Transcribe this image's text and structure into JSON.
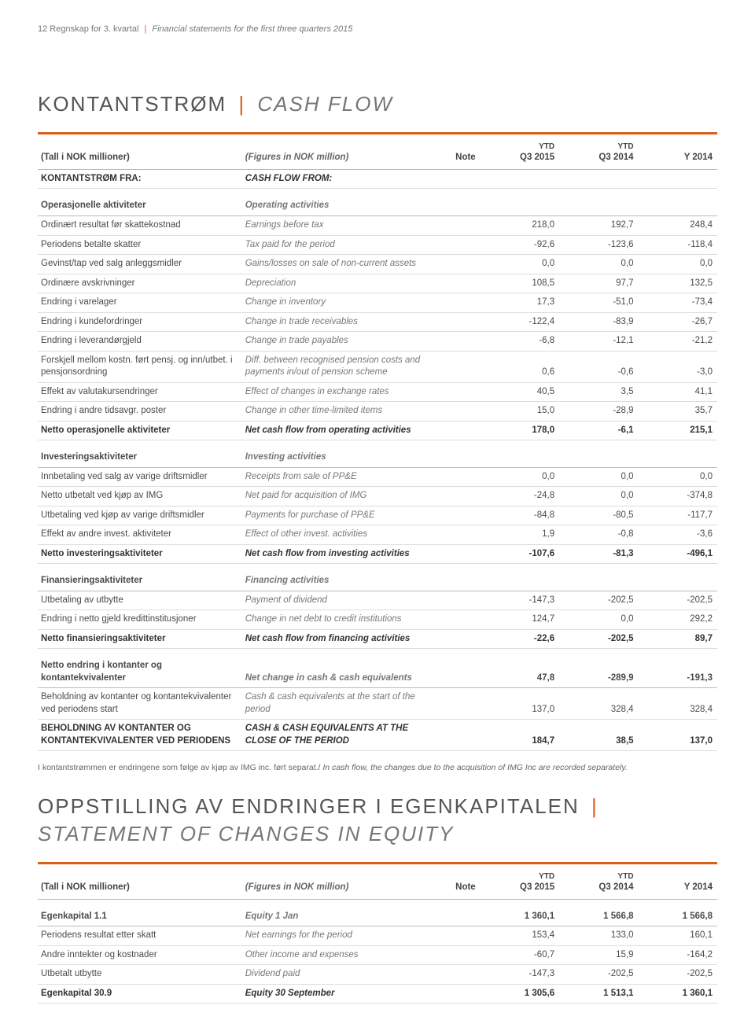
{
  "page": {
    "header_prefix": "12   Regnskap for 3. kvartal",
    "header_suffix": "Financial statements for the first three quarters 2015"
  },
  "colors": {
    "accent": "#d95f1e",
    "text": "#4a4a4a",
    "muted": "#777777",
    "rule": "#dddddd"
  },
  "title1": {
    "no": "KONTANTSTRØM",
    "en": "CASH FLOW"
  },
  "title2_line1": "OPPSTILLING AV ENDRINGER I EGENKAPITALEN",
  "title2_line2": "STATEMENT OF CHANGES IN EQUITY",
  "columns": {
    "c1_no": "(Tall i NOK millioner)",
    "c1_en": "(Figures in NOK million)",
    "note": "Note",
    "c3_top": "YTD",
    "c3": "Q3 2015",
    "c4_top": "YTD",
    "c4": "Q3 2014",
    "c5": "Y 2014"
  },
  "rows": {
    "hdr_from": {
      "no": "KONTANTSTRØM FRA:",
      "en": "CASH FLOW FROM:"
    },
    "op_head": {
      "no": "Operasjonelle aktiviteter",
      "en": "Operating activities"
    },
    "r1": {
      "no": "Ordinært resultat før skattekostnad",
      "en": "Earnings before tax",
      "v": [
        "218,0",
        "192,7",
        "248,4"
      ]
    },
    "r2": {
      "no": "Periodens betalte skatter",
      "en": "Tax paid for the period",
      "v": [
        "-92,6",
        "-123,6",
        "-118,4"
      ]
    },
    "r3": {
      "no": "Gevinst/tap ved salg anleggsmidler",
      "en": "Gains/losses on sale of non-current assets",
      "v": [
        "0,0",
        "0,0",
        "0,0"
      ]
    },
    "r4": {
      "no": "Ordinære avskrivninger",
      "en": "Depreciation",
      "v": [
        "108,5",
        "97,7",
        "132,5"
      ]
    },
    "r5": {
      "no": "Endring i varelager",
      "en": "Change in inventory",
      "v": [
        "17,3",
        "-51,0",
        "-73,4"
      ]
    },
    "r6": {
      "no": "Endring i kundefordringer",
      "en": "Change in trade receivables",
      "v": [
        "-122,4",
        "-83,9",
        "-26,7"
      ]
    },
    "r7": {
      "no": "Endring i leverandørgjeld",
      "en": "Change in trade payables",
      "v": [
        "-6,8",
        "-12,1",
        "-21,2"
      ]
    },
    "r8": {
      "no": "Forskjell mellom kostn. ført pensj. og inn/utbet. i pensjonsordning",
      "en": "Diff. between recognised pension costs and payments in/out of pension scheme",
      "v": [
        "0,6",
        "-0,6",
        "-3,0"
      ]
    },
    "r9": {
      "no": "Effekt av valutakursendringer",
      "en": "Effect of changes in exchange rates",
      "v": [
        "40,5",
        "3,5",
        "41,1"
      ]
    },
    "r10": {
      "no": "Endring i andre tidsavgr. poster",
      "en": "Change in other time-limited items",
      "v": [
        "15,0",
        "-28,9",
        "35,7"
      ]
    },
    "op_sum": {
      "no": "Netto operasjonelle aktiviteter",
      "en": "Net cash flow from operating activities",
      "v": [
        "178,0",
        "-6,1",
        "215,1"
      ]
    },
    "inv_head": {
      "no": "Investeringsaktiviteter",
      "en": "Investing activities"
    },
    "i1": {
      "no": "Innbetaling ved salg av varige driftsmidler",
      "en": "Receipts from sale of PP&E",
      "v": [
        "0,0",
        "0,0",
        "0,0"
      ]
    },
    "i2": {
      "no": "Netto utbetalt ved kjøp av IMG",
      "en": "Net paid for acquisition of IMG",
      "v": [
        "-24,8",
        "0,0",
        "-374,8"
      ]
    },
    "i3": {
      "no": "Utbetaling ved kjøp av varige driftsmidler",
      "en": "Payments for purchase of PP&E",
      "v": [
        "-84,8",
        "-80,5",
        "-117,7"
      ]
    },
    "i4": {
      "no": "Effekt av andre invest. aktiviteter",
      "en": "Effect of other invest. activities",
      "v": [
        "1,9",
        "-0,8",
        "-3,6"
      ]
    },
    "inv_sum": {
      "no": "Netto investeringsaktiviteter",
      "en": "Net cash flow from investing activities",
      "v": [
        "-107,6",
        "-81,3",
        "-496,1"
      ]
    },
    "fin_head": {
      "no": "Finansieringsaktiviteter",
      "en": "Financing activities"
    },
    "f1": {
      "no": "Utbetaling av utbytte",
      "en": "Payment of dividend",
      "v": [
        "-147,3",
        "-202,5",
        "-202,5"
      ]
    },
    "f2": {
      "no": "Endring i netto gjeld kredittinstitusjoner",
      "en": "Change in net debt to credit institutions",
      "v": [
        "124,7",
        "0,0",
        "292,2"
      ]
    },
    "fin_sum": {
      "no": "Netto finansieringsaktiviteter",
      "en": "Net cash flow from financing activities",
      "v": [
        "-22,6",
        "-202,5",
        "89,7"
      ]
    },
    "net_head": {
      "no": "Netto endring i kontanter og kontantekvivalenter",
      "en": "Net change in cash & cash equivalents",
      "v": [
        "47,8",
        "-289,9",
        "-191,3"
      ]
    },
    "start": {
      "no": "Beholdning av kontanter og kontantekvivalenter ved periodens start",
      "en": "Cash & cash equivalents at the start of the period",
      "v": [
        "137,0",
        "328,4",
        "328,4"
      ]
    },
    "close": {
      "no": "BEHOLDNING AV KONTANTER OG KONTANTEKVIVALENTER VED PERIODENS",
      "en": "CASH & CASH EQUIVALENTS AT THE CLOSE OF THE PERIOD",
      "v": [
        "184,7",
        "38,5",
        "137,0"
      ]
    }
  },
  "footnote": {
    "no": "I kontantstrømmen er endringene som følge av kjøp av IMG inc. ført separat./",
    "en": "In cash flow, the changes due to the acquisition of IMG Inc are recorded separately."
  },
  "equity": {
    "e1": {
      "no": "Egenkapital 1.1",
      "en": "Equity 1 Jan",
      "v": [
        "1 360,1",
        "1 566,8",
        "1 566,8"
      ]
    },
    "e2": {
      "no": "Periodens resultat etter skatt",
      "en": "Net earnings for the period",
      "v": [
        "153,4",
        "133,0",
        "160,1"
      ]
    },
    "e3": {
      "no": "Andre inntekter og kostnader",
      "en": "Other income and expenses",
      "v": [
        "-60,7",
        "15,9",
        "-164,2"
      ]
    },
    "e4": {
      "no": "Utbetalt utbytte",
      "en": "Dividend paid",
      "v": [
        "-147,3",
        "-202,5",
        "-202,5"
      ]
    },
    "e5": {
      "no": "Egenkapital 30.9",
      "en": "Equity 30 September",
      "v": [
        "1 305,6",
        "1 513,1",
        "1 360,1"
      ]
    }
  }
}
